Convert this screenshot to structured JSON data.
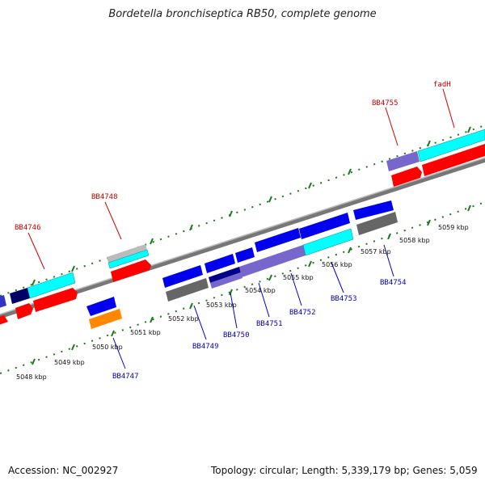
{
  "title": "Bordetella bronchiseptica RB50, complete genome",
  "accession": "Accession: NC_002927",
  "topology": "Topology: circular; Length: 5,339,179 bp; Genes: 5,059",
  "colors": {
    "backbone": "#888888",
    "ticks": "#1a7a1a",
    "label_forward": "#cc0000",
    "label_reverse": "#0000cc"
  },
  "scale_labels": [
    "5048 kbp",
    "5049 kbp",
    "5050 kbp",
    "5051 kbp",
    "5052 kbp",
    "5053 kbp",
    "5054 kbp",
    "5055 kbp",
    "5056 kbp",
    "5057 kbp",
    "5058 kbp",
    "5059 kbp"
  ],
  "forward_gene_labels": [
    "BB4746",
    "BB4748",
    "BB4755",
    "fadH"
  ],
  "reverse_gene_labels": [
    "BB4747",
    "BB4749",
    "BB4750",
    "BB4751",
    "BB4752",
    "BB4753",
    "BB4754"
  ]
}
